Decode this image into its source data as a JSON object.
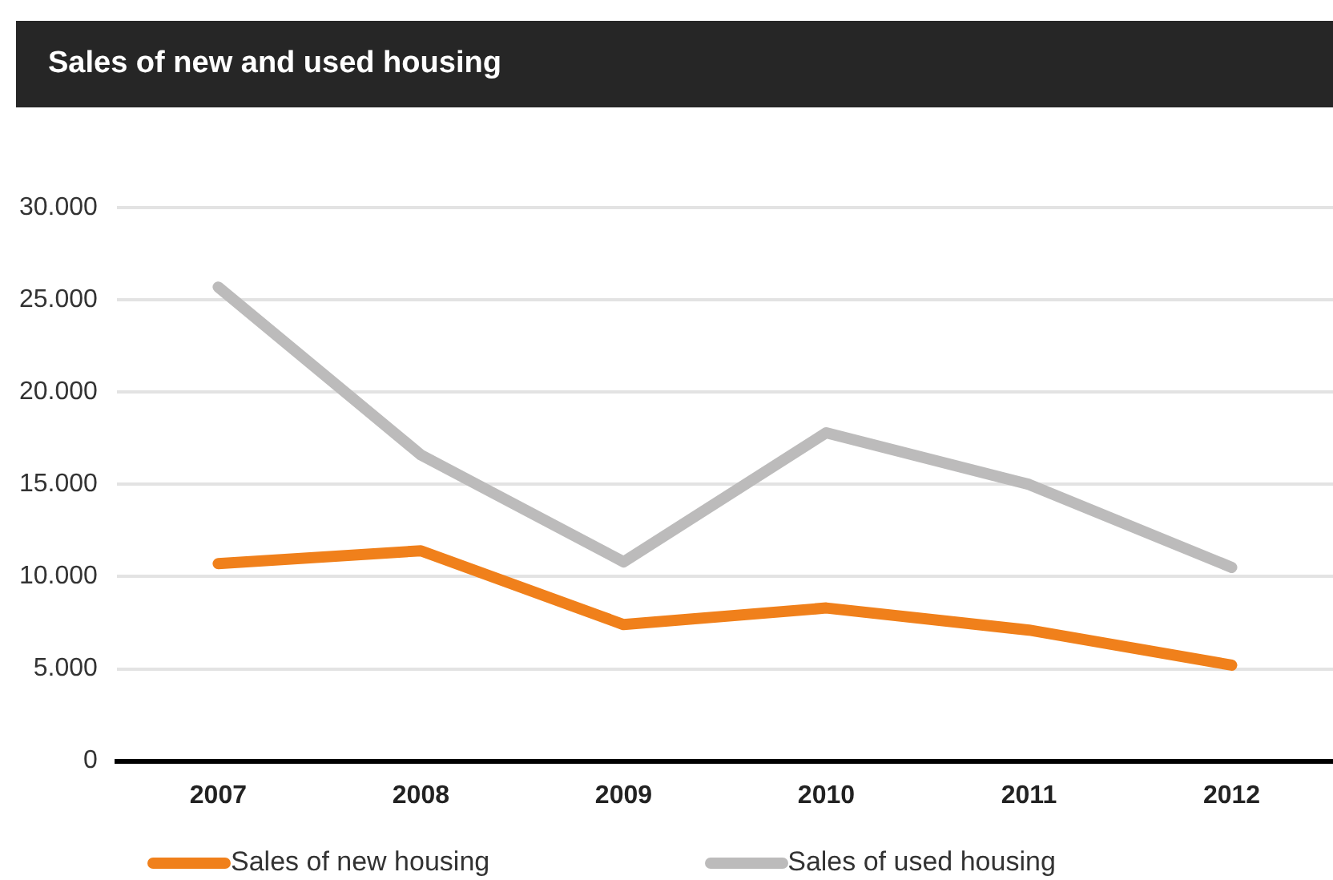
{
  "chart_data": {
    "type": "line",
    "title": "Sales of new and used housing",
    "categories": [
      "2007",
      "2008",
      "2009",
      "2010",
      "2011",
      "2012"
    ],
    "series": [
      {
        "name": "Sales of new housing",
        "color": "#f0801b",
        "values": [
          10700,
          11400,
          7400,
          8300,
          7100,
          5200
        ]
      },
      {
        "name": "Sales of used housing",
        "color": "#bcbbbb",
        "values": [
          25700,
          16600,
          10800,
          17800,
          15000,
          10500
        ]
      }
    ],
    "ylim": [
      0,
      30000
    ],
    "yticks": [
      0,
      {
        "value": 5000,
        "label": "5.000"
      },
      {
        "value": 10000,
        "label": "10.000"
      },
      {
        "value": 15000,
        "label": "15.000"
      },
      {
        "value": 20000,
        "label": "20.000"
      },
      {
        "value": 25000,
        "label": "25.000"
      },
      {
        "value": 30000,
        "label": "30.000"
      }
    ],
    "grid": "y",
    "legend": "bottom",
    "marker": "none",
    "line_style": "solid"
  }
}
